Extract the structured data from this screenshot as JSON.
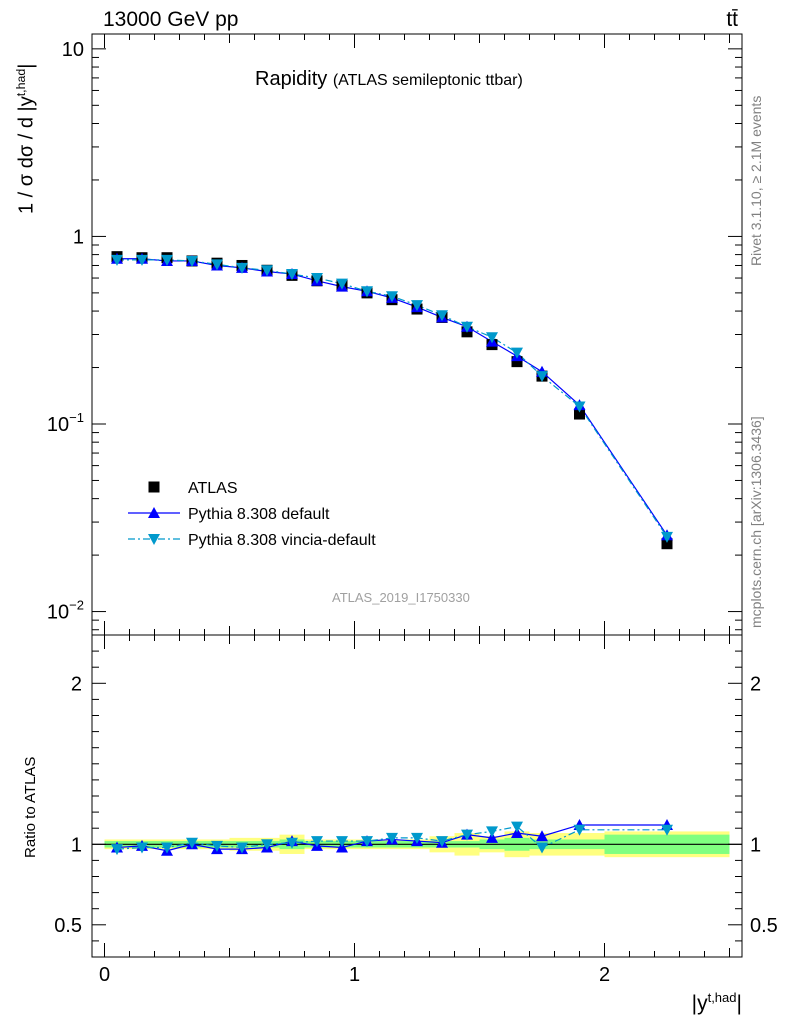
{
  "header": {
    "left": "13000 GeV pp",
    "right": "tt̄"
  },
  "side_labels": {
    "rivet": "Rivet 3.1.10, ≥ 2.1M events",
    "mcplots": "mcplots.cern.ch [arXiv:1306.3436]"
  },
  "analysis_tag": "ATLAS_2019_I1750330",
  "chart_data": [
    {
      "type": "line",
      "title": "Rapidity",
      "subtitle": "(ATLAS semileptonic ttbar)",
      "ylabel_prefix": "1 / σ dσ / d |y",
      "ylabel_sup": "t,had",
      "ylabel_suffix": "|",
      "yscale": "log",
      "ylim": [
        0.0075,
        12
      ],
      "xlim": [
        -0.05,
        2.55
      ],
      "y_ticks": [
        {
          "value": 0.01,
          "base": "10",
          "exp": "−2"
        },
        {
          "value": 0.1,
          "base": "10",
          "exp": "−1"
        },
        {
          "value": 1,
          "base": "1",
          "exp": ""
        },
        {
          "value": 10,
          "base": "10",
          "exp": ""
        }
      ],
      "legend_position": "bottom-left",
      "x": [
        0.05,
        0.15,
        0.25,
        0.35,
        0.45,
        0.55,
        0.65,
        0.75,
        0.85,
        0.95,
        1.05,
        1.15,
        1.25,
        1.35,
        1.45,
        1.55,
        1.65,
        1.75,
        1.9,
        2.25
      ],
      "bin_edges": [
        0,
        0.1,
        0.2,
        0.3,
        0.4,
        0.5,
        0.6,
        0.7,
        0.8,
        0.9,
        1.0,
        1.1,
        1.2,
        1.3,
        1.4,
        1.5,
        1.6,
        1.7,
        1.8,
        2.0,
        2.5
      ],
      "series": [
        {
          "name": "ATLAS",
          "style": "data",
          "values": [
            0.78,
            0.77,
            0.77,
            0.74,
            0.72,
            0.7,
            0.66,
            0.62,
            0.58,
            0.55,
            0.5,
            0.46,
            0.41,
            0.37,
            0.31,
            0.265,
            0.215,
            0.18,
            0.113,
            0.023
          ]
        },
        {
          "name": "Pythia 8.308 default",
          "style": "solid-up",
          "values": [
            0.76,
            0.76,
            0.74,
            0.74,
            0.7,
            0.68,
            0.65,
            0.63,
            0.58,
            0.54,
            0.51,
            0.47,
            0.42,
            0.37,
            0.33,
            0.275,
            0.23,
            0.19,
            0.126,
            0.0255
          ]
        },
        {
          "name": "Pythia 8.308 vincia-default",
          "style": "dashdot-down",
          "values": [
            0.75,
            0.75,
            0.75,
            0.74,
            0.71,
            0.68,
            0.66,
            0.63,
            0.6,
            0.56,
            0.51,
            0.48,
            0.43,
            0.38,
            0.33,
            0.29,
            0.24,
            0.18,
            0.124,
            0.025
          ]
        }
      ]
    },
    {
      "type": "line",
      "ylabel": "Ratio to ATLAS",
      "xlabel_prefix": "|y",
      "xlabel_sup": "t,had",
      "xlabel_suffix": "|",
      "ylim": [
        0.3,
        2.3
      ],
      "xlim": [
        -0.05,
        2.55
      ],
      "y_ticks": [
        0.5,
        1,
        2
      ],
      "y_tick_labels": [
        "0.5",
        "1",
        "2"
      ],
      "x_ticks": [
        0,
        1,
        2
      ],
      "x_tick_labels": [
        "0",
        "1",
        "2"
      ],
      "bin_edges": [
        0,
        0.1,
        0.2,
        0.3,
        0.4,
        0.5,
        0.6,
        0.7,
        0.8,
        0.9,
        1.0,
        1.1,
        1.2,
        1.3,
        1.4,
        1.5,
        1.6,
        1.7,
        1.8,
        2.0,
        2.5
      ],
      "x": [
        0.05,
        0.15,
        0.25,
        0.35,
        0.45,
        0.55,
        0.65,
        0.75,
        0.85,
        0.95,
        1.05,
        1.15,
        1.25,
        1.35,
        1.45,
        1.55,
        1.65,
        1.75,
        1.9,
        2.25
      ],
      "band_stat": [
        0.02,
        0.02,
        0.02,
        0.02,
        0.02,
        0.02,
        0.02,
        0.03,
        0.02,
        0.02,
        0.02,
        0.02,
        0.02,
        0.02,
        0.02,
        0.03,
        0.04,
        0.03,
        0.03,
        0.06
      ],
      "band_total": [
        0.03,
        0.03,
        0.03,
        0.03,
        0.03,
        0.04,
        0.04,
        0.06,
        0.03,
        0.03,
        0.03,
        0.03,
        0.03,
        0.05,
        0.07,
        0.05,
        0.08,
        0.07,
        0.07,
        0.08
      ],
      "series": [
        {
          "name": "Pythia 8.308 default",
          "style": "solid-up",
          "values": [
            0.98,
            0.99,
            0.96,
            1.0,
            0.97,
            0.97,
            0.98,
            1.02,
            0.99,
            0.98,
            1.02,
            1.03,
            1.02,
            1.01,
            1.06,
            1.04,
            1.07,
            1.05,
            1.12,
            1.12
          ]
        },
        {
          "name": "Pythia 8.308 vincia-default",
          "style": "dashdot-down",
          "values": [
            0.97,
            0.98,
            0.98,
            1.01,
            0.99,
            0.98,
            1.0,
            1.01,
            1.02,
            1.02,
            1.02,
            1.04,
            1.04,
            1.02,
            1.06,
            1.08,
            1.11,
            0.98,
            1.09,
            1.09
          ]
        }
      ],
      "colors": {
        "data": "#000000",
        "default": "#0000ff",
        "vincia": "#0099cc",
        "stat_band": "#80ff80",
        "total_band": "#ffff80"
      }
    }
  ]
}
